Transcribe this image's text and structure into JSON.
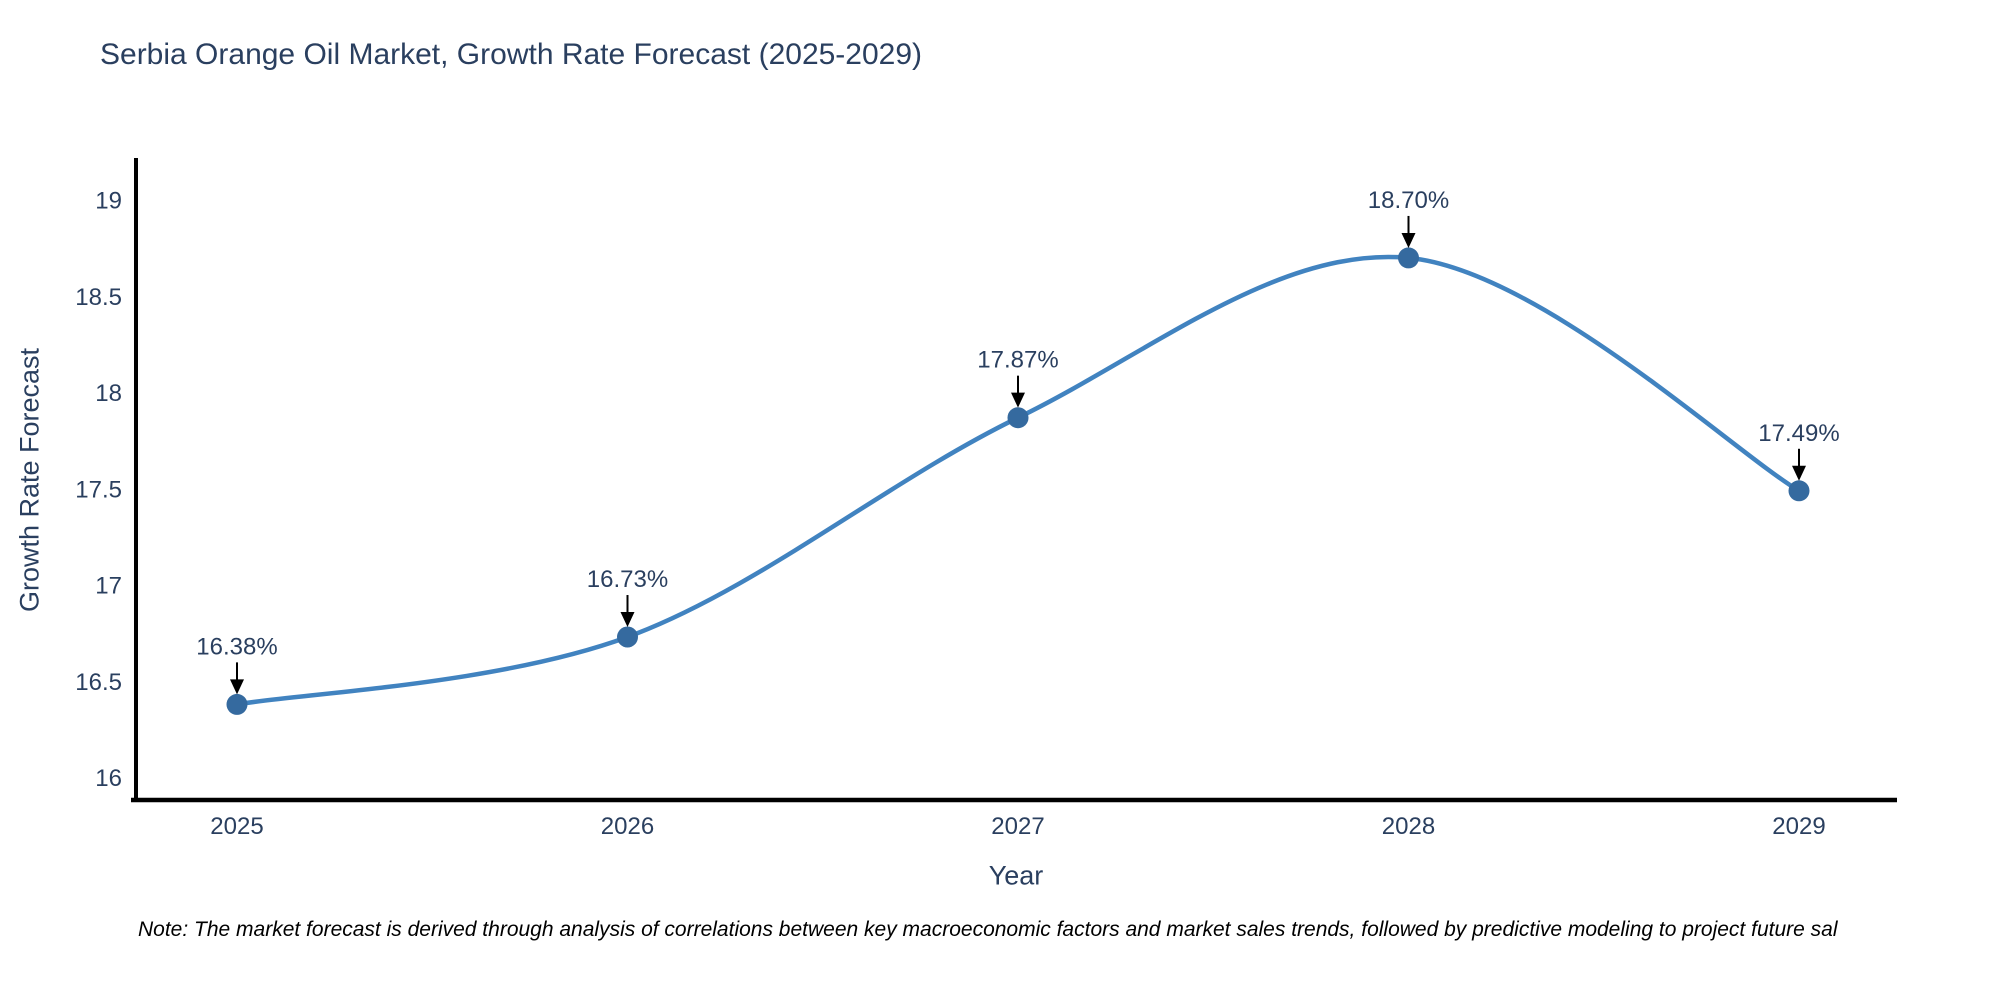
{
  "title": "Serbia Orange Oil Market, Growth Rate Forecast (2025-2029)",
  "note": "Note: The market forecast is derived through analysis of correlations between key macroeconomic factors and market sales trends, followed by predictive modeling to project future sal",
  "chart_data": {
    "type": "line",
    "title": "Serbia Orange Oil Market, Growth Rate Forecast (2025-2029)",
    "xlabel": "Year",
    "ylabel": "Growth Rate Forecast",
    "x": [
      2025,
      2026,
      2027,
      2028,
      2029
    ],
    "values": [
      16.38,
      16.73,
      17.87,
      18.7,
      17.49
    ],
    "point_labels": [
      "16.38%",
      "16.73%",
      "17.87%",
      "18.70%",
      "17.49%"
    ],
    "xtick_labels": [
      "2025",
      "2026",
      "2027",
      "2028",
      "2029"
    ],
    "yticks": [
      16,
      16.5,
      17,
      17.5,
      18,
      18.5,
      19
    ],
    "ytick_labels": [
      "16",
      "16.5",
      "17",
      "17.5",
      "18",
      "18.5",
      "19"
    ],
    "ylim": [
      15.88,
      19.22
    ],
    "line_shape": "spline",
    "grid": false,
    "legend": "none",
    "colors": {
      "line": "#4183c0",
      "marker": "#356a9f",
      "arrow": "#000000",
      "axis": "#000000",
      "text": "#2a3f5f"
    }
  }
}
